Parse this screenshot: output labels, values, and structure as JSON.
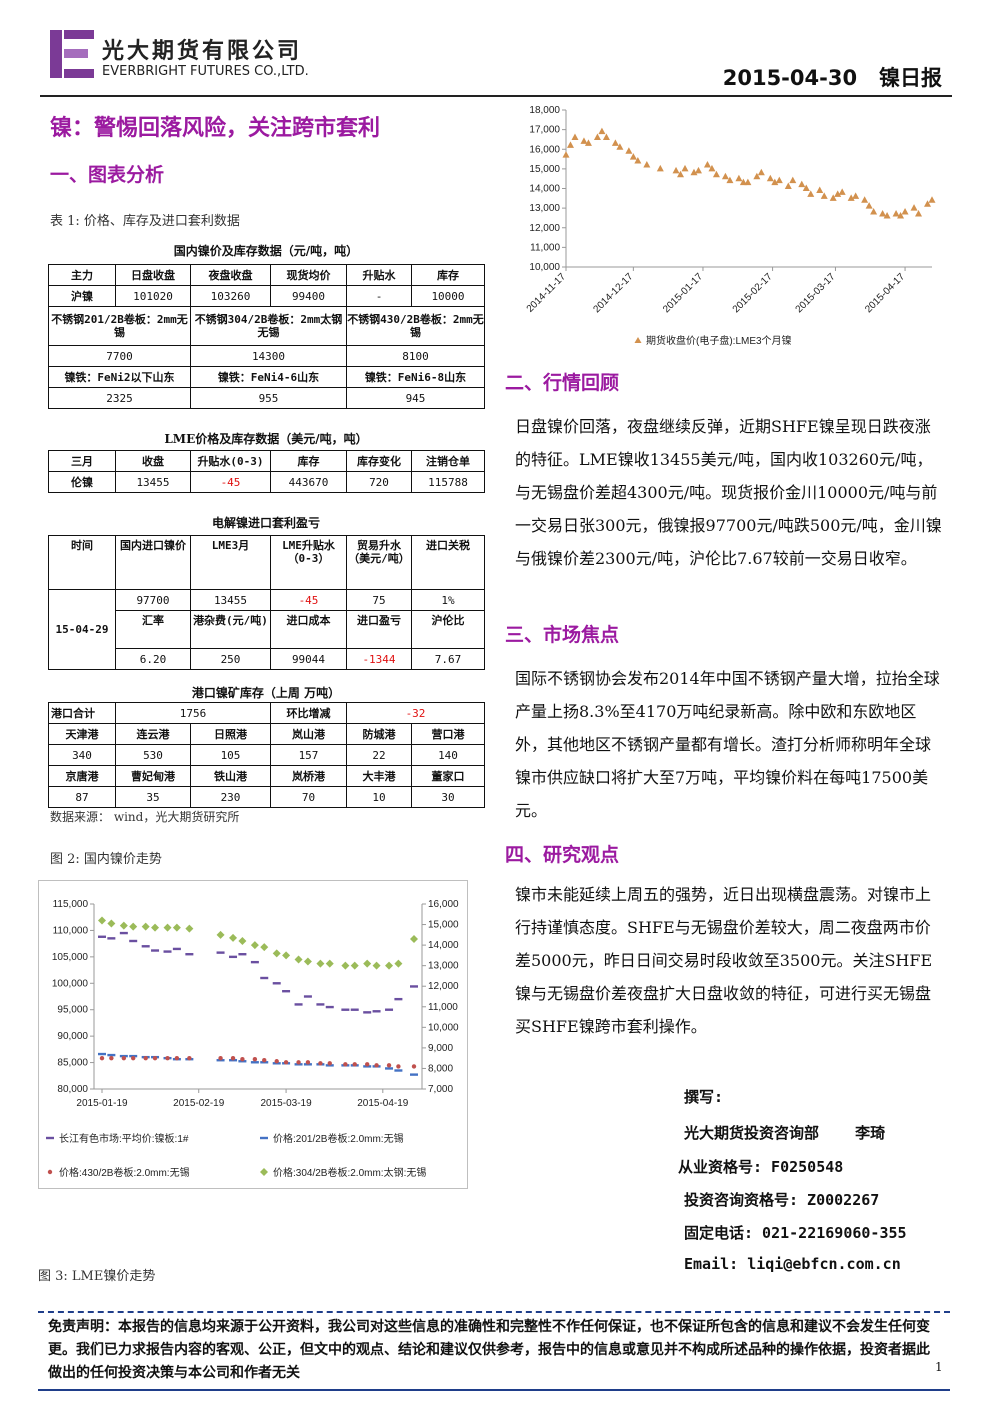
{
  "header": {
    "company_cn": "光大期货有限公司",
    "company_en": "EVERBRIGHT FUTURES CO.,LTD.",
    "date_label": "2015-04-30   镍日报",
    "logo_color": "#7b3a96"
  },
  "main_title": "镍：警惕回落风险，关注跨市套利",
  "sections": {
    "s1": "一、图表分析",
    "s2": "二、行情回顾",
    "s3": "三、市场焦点",
    "s4": "四、研究观点"
  },
  "table1": {
    "caption": "表 1:  价格、库存及进口套利数据",
    "domestic": {
      "title": "国内镍价及库存数据（元/吨，吨）",
      "headers": [
        "主力",
        "日盘收盘",
        "夜盘收盘",
        "现货均价",
        "升贴水",
        "库存"
      ],
      "row1": [
        "沪镍",
        "101020",
        "103260",
        "99400",
        "-",
        "10000"
      ],
      "row2": [
        "不锈钢201/2B卷板：2mm无锡",
        "不锈钢304/2B卷板：2mm太钢无锡",
        "不锈钢430/2B卷板：2mm无锡"
      ],
      "row3": [
        "7700",
        "14300",
        "8100"
      ],
      "row4": [
        "镍铁：FeNi2以下山东",
        "镍铁：FeNi4-6山东",
        "镍铁：FeNi6-8山东"
      ],
      "row5": [
        "2325",
        "955",
        "945"
      ]
    },
    "lme": {
      "title": "LME价格及库存数据（美元/吨，吨）",
      "headers": [
        "三月",
        "收盘",
        "升贴水(0-3)",
        "库存",
        "库存变化",
        "注销仓单"
      ],
      "row": [
        "伦镍",
        "13455",
        "-45",
        "443670",
        "720",
        "115788"
      ]
    },
    "arb": {
      "title": "电解镍进口套利盈亏",
      "headers": [
        "时间",
        "国内进口镍价",
        "LME3月",
        "LME升贴水（0-3）",
        "贸易升水（美元/吨）",
        "进口关税"
      ],
      "date": "15-04-29",
      "row1": [
        "97700",
        "13455",
        "-45",
        "75",
        "1%"
      ],
      "headers2": [
        "汇率",
        "港杂费(元/吨)",
        "进口成本",
        "进口盈亏",
        "沪伦比"
      ],
      "row2": [
        "6.20",
        "250",
        "99044",
        "-1344",
        "7.67"
      ]
    },
    "port": {
      "title": "港口镍矿库存（上周  万吨）",
      "total_label": "港口合计",
      "total": "1756",
      "change_label": "环比增减",
      "change": "-32",
      "ports1": [
        "天津港",
        "连云港",
        "日照港",
        "岚山港",
        "防城港",
        "营口港"
      ],
      "vals1": [
        "340",
        "530",
        "105",
        "157",
        "22",
        "140"
      ],
      "ports2": [
        "京唐港",
        "曹妃甸港",
        "铁山港",
        "岚桥港",
        "大丰港",
        "董家口"
      ],
      "vals2": [
        "87",
        "35",
        "230",
        "70",
        "10",
        "30"
      ]
    },
    "source": "数据来源： wind，光大期货研究所"
  },
  "fig2_caption": "图 2:  国内镍价走势",
  "fig3_caption": "图 3:  LME镍价走势",
  "chart_data": [
    {
      "type": "scatter",
      "title": "",
      "x": [
        "2014-11-17",
        "2014-11-19",
        "2014-11-21",
        "2014-11-25",
        "2014-11-27",
        "2014-12-01",
        "2014-12-03",
        "2014-12-05",
        "2014-12-09",
        "2014-12-11",
        "2014-12-15",
        "2014-12-17",
        "2014-12-19",
        "2014-12-23",
        "2014-12-29",
        "2015-01-05",
        "2015-01-07",
        "2015-01-09",
        "2015-01-13",
        "2015-01-15",
        "2015-01-19",
        "2015-01-21",
        "2015-01-23",
        "2015-01-27",
        "2015-01-29",
        "2015-02-02",
        "2015-02-04",
        "2015-02-06",
        "2015-02-10",
        "2015-02-12",
        "2015-02-16",
        "2015-02-18",
        "2015-02-20",
        "2015-02-24",
        "2015-02-26",
        "2015-03-02",
        "2015-03-04",
        "2015-03-06",
        "2015-03-10",
        "2015-03-12",
        "2015-03-16",
        "2015-03-18",
        "2015-03-20",
        "2015-03-24",
        "2015-03-26",
        "2015-03-30",
        "2015-04-01",
        "2015-04-03",
        "2015-04-07",
        "2015-04-09",
        "2015-04-13",
        "2015-04-15",
        "2015-04-17",
        "2015-04-21",
        "2015-04-23",
        "2015-04-27",
        "2015-04-29"
      ],
      "series": [
        {
          "name": "期货收盘价(电子盘):LME3个月镍",
          "color": "#d2914e",
          "values": [
            15700,
            16200,
            16600,
            16400,
            16300,
            16600,
            16900,
            16600,
            16300,
            16100,
            15900,
            15600,
            15400,
            15200,
            15000,
            14900,
            14700,
            15000,
            14800,
            14900,
            15200,
            15000,
            14700,
            14600,
            14400,
            14500,
            14300,
            14300,
            14600,
            14800,
            14500,
            14300,
            14400,
            14100,
            14400,
            14200,
            14000,
            13700,
            13900,
            13600,
            13500,
            13700,
            13800,
            13500,
            13600,
            13400,
            13100,
            12800,
            12700,
            12600,
            12700,
            12600,
            12800,
            13000,
            12700,
            13200,
            13400
          ]
        }
      ],
      "ylim": [
        10000,
        18000
      ],
      "y_ticks": [
        "10,000",
        "11,000",
        "12,000",
        "13,000",
        "14,000",
        "15,000",
        "16,000",
        "17,000",
        "18,000"
      ],
      "x_ticks": [
        "2014-11-17",
        "2014-12-17",
        "2015-01-17",
        "2015-02-17",
        "2015-03-17",
        "2015-04-17"
      ],
      "legend_label": "期货收盘价(电子盘):LME3个月镍",
      "legend": "bottom"
    },
    {
      "type": "scatter",
      "title": "",
      "x": [
        "2015-01-19",
        "2015-01-22",
        "2015-01-26",
        "2015-01-29",
        "2015-02-02",
        "2015-02-05",
        "2015-02-09",
        "2015-02-12",
        "2015-02-16",
        "2015-02-26",
        "2015-03-02",
        "2015-03-05",
        "2015-03-09",
        "2015-03-12",
        "2015-03-16",
        "2015-03-19",
        "2015-03-23",
        "2015-03-26",
        "2015-03-30",
        "2015-04-02",
        "2015-04-07",
        "2015-04-10",
        "2015-04-14",
        "2015-04-17",
        "2015-04-21",
        "2015-04-24",
        "2015-04-29"
      ],
      "series": [
        {
          "name": "长江有色市场:平均价:镍板:1#",
          "axis": "left",
          "color": "#6a4fa0",
          "values": [
            108800,
            108500,
            109500,
            108000,
            107000,
            106200,
            106000,
            106500,
            105500,
            105800,
            105000,
            105500,
            104000,
            101000,
            100000,
            98500,
            96000,
            97500,
            96000,
            95500,
            95000,
            95000,
            94500,
            94700,
            95000,
            97000,
            99400
          ]
        },
        {
          "name": "价格:201/2B卷板:2.0mm:无锡",
          "axis": "right",
          "color": "#4472c4",
          "values": [
            8700,
            8650,
            8600,
            8600,
            8550,
            8550,
            8500,
            8450,
            8450,
            8400,
            8400,
            8350,
            8300,
            8300,
            8250,
            8250,
            8200,
            8200,
            8200,
            8150,
            8150,
            8150,
            8100,
            8100,
            8000,
            7900,
            7700
          ]
        },
        {
          "name": "价格:430/2B卷板:2.0mm:无锡",
          "axis": "right",
          "color": "#c0504d",
          "values": [
            8500,
            8500,
            8500,
            8500,
            8500,
            8500,
            8500,
            8500,
            8500,
            8500,
            8500,
            8450,
            8450,
            8400,
            8350,
            8300,
            8300,
            8300,
            8250,
            8250,
            8200,
            8200,
            8200,
            8150,
            8150,
            8100,
            8100
          ]
        },
        {
          "name": "价格:304/2B卷板:2.0mm:太钢:无锡",
          "axis": "right",
          "color": "#9bbb59",
          "values": [
            15200,
            15050,
            14950,
            14900,
            14900,
            14850,
            14850,
            14850,
            14800,
            14500,
            14350,
            14200,
            14000,
            13900,
            13600,
            13500,
            13300,
            13200,
            13100,
            13100,
            13000,
            13000,
            13100,
            13000,
            13000,
            13100,
            14300
          ]
        }
      ],
      "ylim_left": [
        80000,
        115000
      ],
      "ylim_right": [
        7000,
        16000
      ],
      "y_ticks_left": [
        "80,000",
        "85,000",
        "90,000",
        "95,000",
        "100,000",
        "105,000",
        "110,000",
        "115,000"
      ],
      "y_ticks_right": [
        "7,000",
        "8,000",
        "9,000",
        "10,000",
        "11,000",
        "12,000",
        "13,000",
        "14,000",
        "15,000",
        "16,000"
      ],
      "x_ticks": [
        "2015-01-19",
        "2015-02-19",
        "2015-03-19",
        "2015-04-19"
      ],
      "legend": "bottom"
    }
  ],
  "review": {
    "text": "日盘镍价回落，夜盘继续反弹，近期SHFE镍呈现日跌夜涨的特征。LME镍收13455美元/吨，国内收103260元/吨，与无锡盘价差超4300元/吨。现货报价金川10000元/吨与前一交易日张300元，俄镍报97700元/吨跌500元/吨，金川镍与俄镍价差2300元/吨，沪伦比7.67较前一交易日收窄。"
  },
  "focus": {
    "text": "国际不锈钢协会发布2014年中国不锈钢产量大增，拉抬全球产量上扬8.3%至4170万吨纪录新高。除中欧和东欧地区外，其他地区不锈钢产量都有增长。渣打分析师称明年全球镍市供应缺口将扩大至7万吨，平均镍价料在每吨17500美元。"
  },
  "view": {
    "text": "镍市未能延续上周五的强势，近日出现横盘震荡。对镍市上行持谨慎态度。SHFE与无锡盘价差较大，周二夜盘两市价差5000元，昨日日间交易时段收敛至3500元。关注SHFE镍与无锡盘价差夜盘扩大日盘收敛的特征，可进行买无锡盘买SHFE镍跨市套利操作。"
  },
  "author": {
    "label": "撰写:",
    "dept": "光大期货投资咨询部    李琦",
    "cert1": "从业资格号: F0250548",
    "cert2": "投资咨询资格号: Z0002267",
    "phone": "固定电话: 021-22169060-355",
    "email": "Email: liqi@ebfcn.com.cn"
  },
  "disclaimer": "免责声明：本报告的信息均来源于公开资料，我公司对这些信息的准确性和完整性不作任何保证，也不保证所包含的信息和建议不会发生任何变更。我们已力求报告内容的客观、公正，但文中的观点、结论和建议仅供参考，报告中的信息或意见并不构成所述品种的操作依据，投资者据此做出的任何投资决策与本公司和作者无关",
  "page_number": "1"
}
